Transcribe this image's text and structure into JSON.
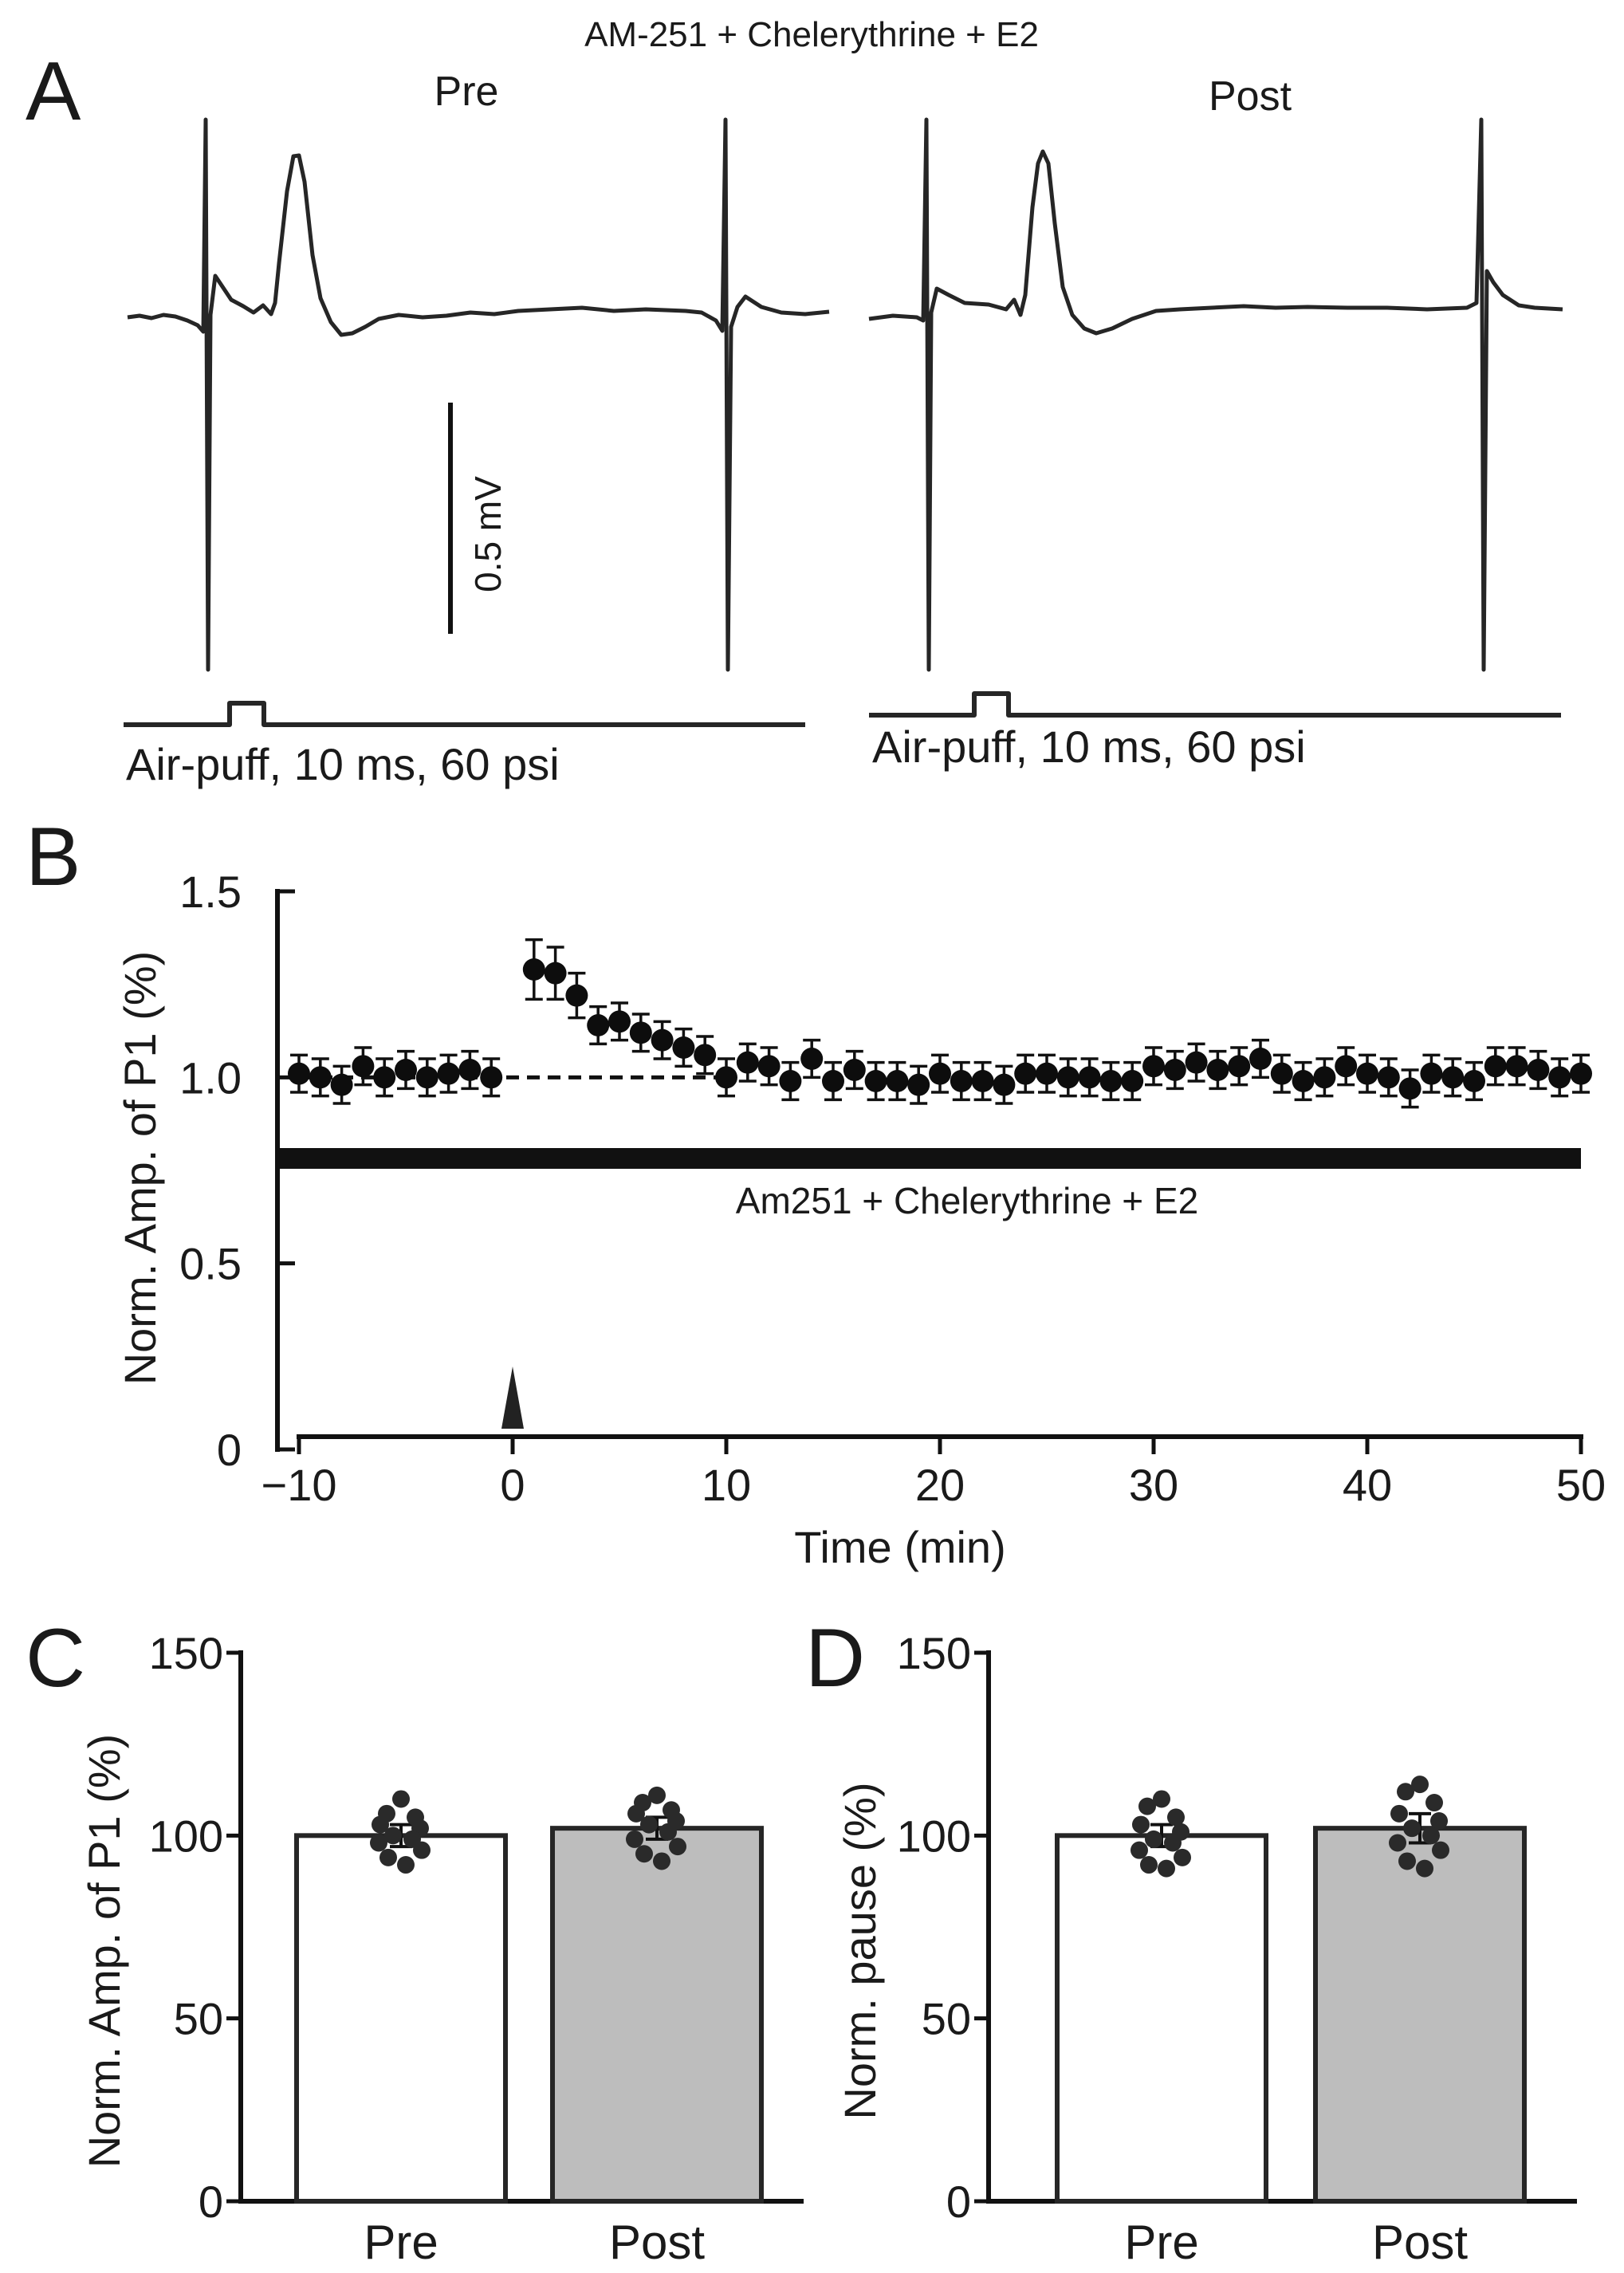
{
  "figure": {
    "panel_labels": {
      "a": "A",
      "b": "B",
      "c": "C",
      "d": "D"
    },
    "panel_a": {
      "title": "AM-251 + Chelerythrine + E2",
      "pre_label": "Pre",
      "post_label": "Post",
      "scale_bar_label": "0.5 mV",
      "stimulus_label_pre": "Air-puff, 10 ms, 60 psi",
      "stimulus_label_post": "Air-puff, 10 ms, 60 psi"
    },
    "panel_b": {
      "treatment_bar_label": "Am251 + Chelerythrine + E2"
    }
  },
  "chart_data": [
    {
      "id": "B",
      "type": "scatter",
      "title": "",
      "xlabel": "Time (min)",
      "ylabel": "Norm. Amp. of P1 (%)",
      "xlim": [
        -10,
        50
      ],
      "ylim": [
        0,
        1.5
      ],
      "xticks": [
        -10,
        0,
        10,
        20,
        30,
        40,
        50
      ],
      "xtick_labels": [
        "−10",
        "0",
        "10",
        "20",
        "30",
        "40",
        "50"
      ],
      "yticks": [
        0,
        0.5,
        1.0,
        1.5
      ],
      "ytick_labels": [
        "0",
        "0.5",
        "1.0",
        "1.5"
      ],
      "baseline": 1.0,
      "stimulus_time": 0,
      "series": [
        {
          "name": "Norm. Amp. of P1",
          "x": [
            -10,
            -9,
            -8,
            -7,
            -6,
            -5,
            -4,
            -3,
            -2,
            -1,
            1,
            2,
            3,
            4,
            5,
            6,
            7,
            8,
            9,
            10,
            11,
            12,
            13,
            14,
            15,
            16,
            17,
            18,
            19,
            20,
            21,
            22,
            23,
            24,
            25,
            26,
            27,
            28,
            29,
            30,
            31,
            32,
            33,
            34,
            35,
            36,
            37,
            38,
            39,
            40,
            41,
            42,
            43,
            44,
            45,
            46,
            47,
            48,
            49,
            50
          ],
          "y": [
            1.01,
            1.0,
            0.98,
            1.03,
            1.0,
            1.02,
            1.0,
            1.01,
            1.02,
            1.0,
            1.29,
            1.28,
            1.22,
            1.14,
            1.15,
            1.12,
            1.1,
            1.08,
            1.06,
            1.0,
            1.04,
            1.03,
            0.99,
            1.05,
            0.99,
            1.02,
            0.99,
            0.99,
            0.98,
            1.01,
            0.99,
            0.99,
            0.98,
            1.01,
            1.01,
            1.0,
            1.0,
            0.99,
            0.99,
            1.03,
            1.02,
            1.04,
            1.02,
            1.03,
            1.05,
            1.01,
            0.99,
            1.0,
            1.03,
            1.01,
            1.0,
            0.97,
            1.01,
            1.0,
            0.99,
            1.03,
            1.03,
            1.02,
            1.0,
            1.01
          ],
          "err": [
            0.05,
            0.05,
            0.05,
            0.05,
            0.05,
            0.05,
            0.05,
            0.05,
            0.05,
            0.05,
            0.08,
            0.07,
            0.06,
            0.05,
            0.05,
            0.05,
            0.05,
            0.05,
            0.05,
            0.05,
            0.05,
            0.05,
            0.05,
            0.05,
            0.05,
            0.05,
            0.05,
            0.05,
            0.05,
            0.05,
            0.05,
            0.05,
            0.05,
            0.05,
            0.05,
            0.05,
            0.05,
            0.05,
            0.05,
            0.05,
            0.05,
            0.05,
            0.05,
            0.05,
            0.05,
            0.05,
            0.05,
            0.05,
            0.05,
            0.05,
            0.05,
            0.05,
            0.05,
            0.05,
            0.05,
            0.05,
            0.05,
            0.05,
            0.05,
            0.05
          ]
        }
      ]
    },
    {
      "id": "C",
      "type": "bar",
      "ylabel": "Norm. Amp. of P1 (%)",
      "ylim": [
        0,
        150
      ],
      "yticks": [
        0,
        50,
        100,
        150
      ],
      "ytick_labels": [
        "0",
        "50",
        "100",
        "150"
      ],
      "categories": [
        "Pre",
        "Post"
      ],
      "values": [
        100,
        102
      ],
      "errors": [
        3,
        3
      ],
      "colors": [
        "#ffffff",
        "#bdbdbd"
      ],
      "points": [
        [
          110,
          106,
          105,
          103,
          102,
          100,
          99,
          98,
          96,
          94,
          92
        ],
        [
          111,
          109,
          107,
          106,
          104,
          103,
          101,
          99,
          97,
          95,
          93
        ]
      ]
    },
    {
      "id": "D",
      "type": "bar",
      "ylabel": "Norm. pause (%)",
      "ylim": [
        0,
        150
      ],
      "yticks": [
        0,
        50,
        100,
        150
      ],
      "ytick_labels": [
        "0",
        "50",
        "100",
        "150"
      ],
      "categories": [
        "Pre",
        "Post"
      ],
      "values": [
        100,
        102
      ],
      "errors": [
        3,
        4
      ],
      "colors": [
        "#ffffff",
        "#bdbdbd"
      ],
      "points": [
        [
          110,
          108,
          105,
          103,
          101,
          99,
          98,
          96,
          94,
          92,
          91
        ],
        [
          114,
          112,
          109,
          106,
          104,
          102,
          100,
          98,
          96,
          93,
          91
        ]
      ]
    }
  ]
}
